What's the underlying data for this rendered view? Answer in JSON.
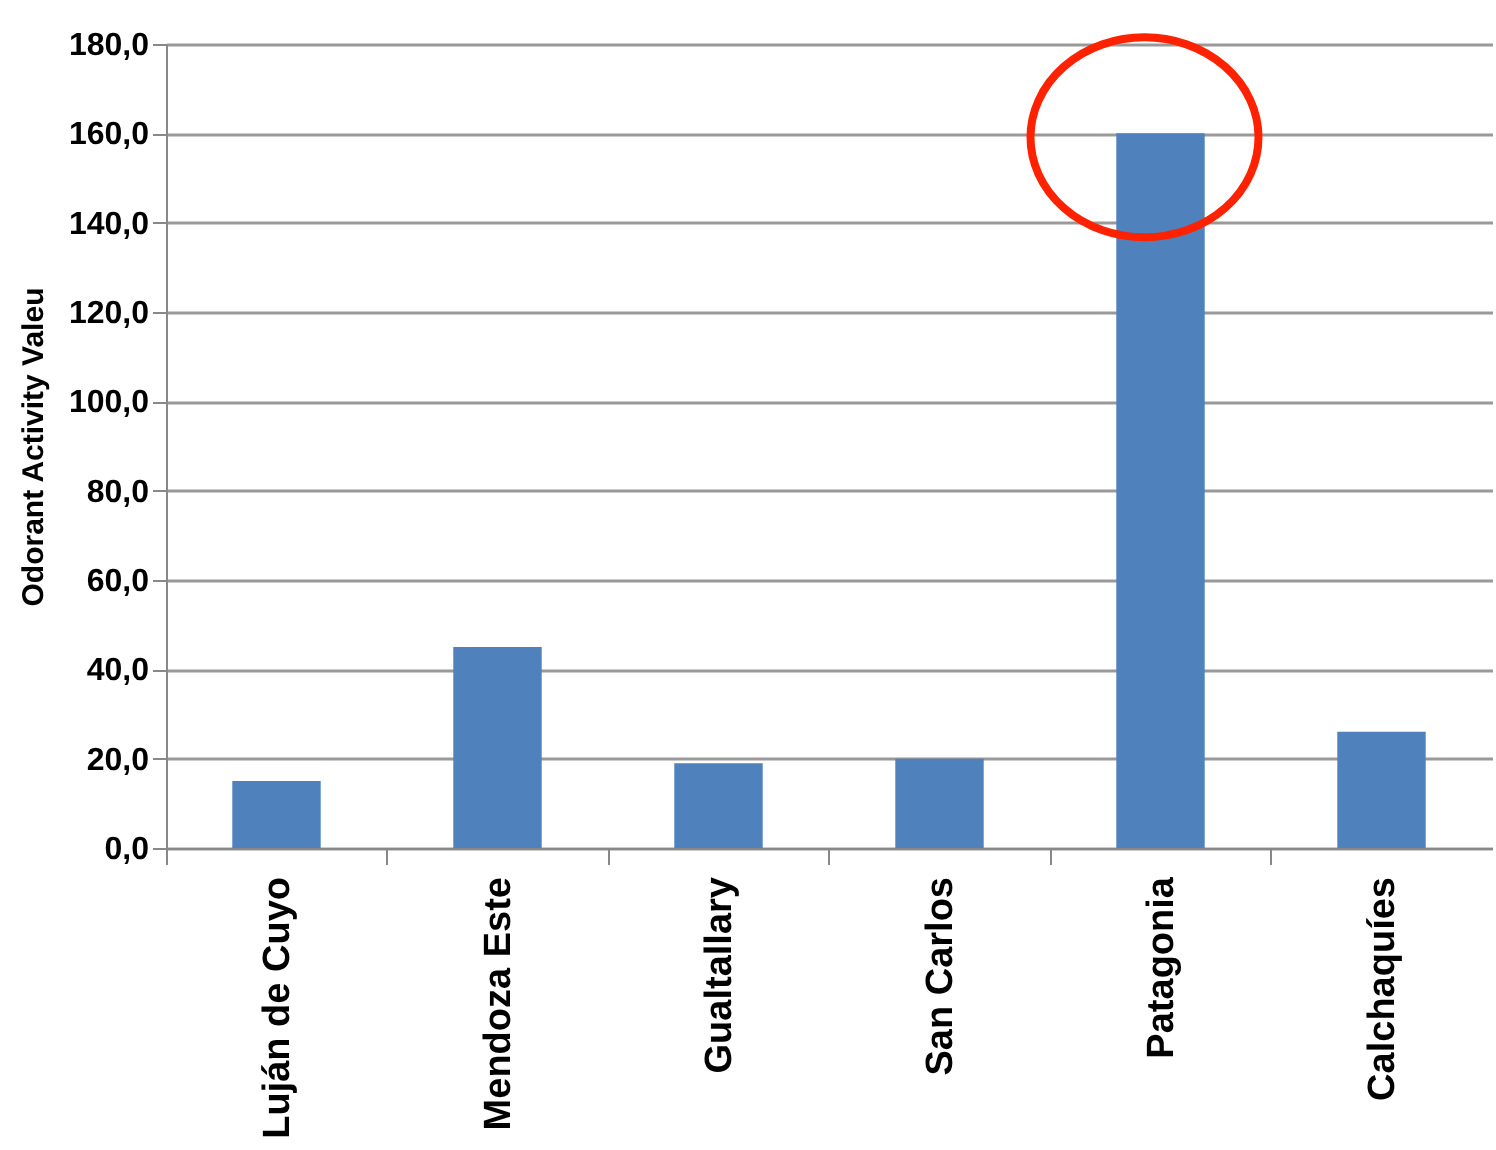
{
  "chart_data": {
    "type": "bar",
    "ylabel": "Odorant Activity Valeu",
    "categories": [
      "Luján de Cuyo",
      "Mendoza Este",
      "Gualtallary",
      "San Carlos",
      "Patagonia",
      "Calchaquíes"
    ],
    "values": [
      15,
      45,
      19,
      20,
      160,
      26
    ],
    "color": "#4f81bd",
    "ylim": [
      0,
      180
    ],
    "yticks": [
      {
        "value": 0,
        "label": "0,0"
      },
      {
        "value": 20,
        "label": "20,0"
      },
      {
        "value": 40,
        "label": "40,0"
      },
      {
        "value": 60,
        "label": "60,0"
      },
      {
        "value": 80,
        "label": "80,0"
      },
      {
        "value": 100,
        "label": "100,0"
      },
      {
        "value": 120,
        "label": "120,0"
      },
      {
        "value": 140,
        "label": "140,0"
      },
      {
        "value": 160,
        "label": "160,0"
      },
      {
        "value": 180,
        "label": "180,0"
      }
    ],
    "grid": "y"
  }
}
